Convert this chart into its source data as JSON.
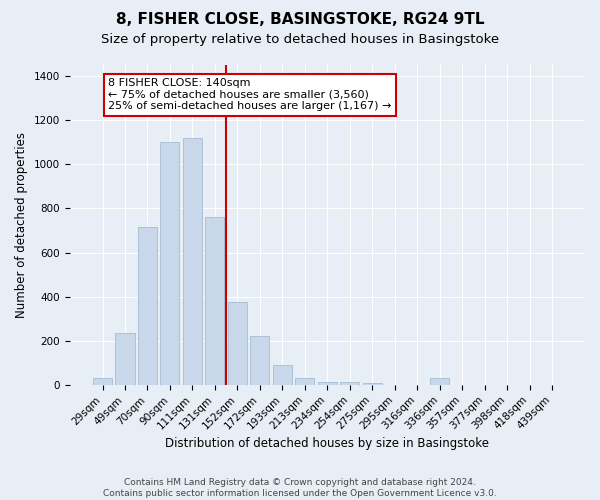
{
  "title_line1": "8, FISHER CLOSE, BASINGSTOKE, RG24 9TL",
  "title_line2": "Size of property relative to detached houses in Basingstoke",
  "xlabel": "Distribution of detached houses by size in Basingstoke",
  "ylabel": "Number of detached properties",
  "bar_labels": [
    "29sqm",
    "49sqm",
    "70sqm",
    "90sqm",
    "111sqm",
    "131sqm",
    "152sqm",
    "172sqm",
    "193sqm",
    "213sqm",
    "234sqm",
    "254sqm",
    "275sqm",
    "295sqm",
    "316sqm",
    "336sqm",
    "357sqm",
    "377sqm",
    "398sqm",
    "418sqm",
    "439sqm"
  ],
  "bar_heights": [
    29,
    236,
    716,
    1100,
    1120,
    760,
    375,
    220,
    90,
    30,
    15,
    14,
    10,
    0,
    0,
    30,
    0,
    0,
    0,
    0,
    0
  ],
  "bar_color": "#c8d8ea",
  "bar_edge_color": "#9ab5cc",
  "vline_x": 5.5,
  "vline_color": "#cc0000",
  "annotation_text": "8 FISHER CLOSE: 140sqm\n← 75% of detached houses are smaller (3,560)\n25% of semi-detached houses are larger (1,167) →",
  "annotation_box_facecolor": "#ffffff",
  "annotation_box_edgecolor": "#cc0000",
  "ylim": [
    0,
    1450
  ],
  "yticks": [
    0,
    200,
    400,
    600,
    800,
    1000,
    1200,
    1400
  ],
  "bg_color": "#e8eef5",
  "grid_color": "#ffffff",
  "footer_line1": "Contains HM Land Registry data © Crown copyright and database right 2024.",
  "footer_line2": "Contains public sector information licensed under the Open Government Licence v3.0.",
  "title1_fontsize": 11,
  "title2_fontsize": 9.5,
  "tick_fontsize": 7.5,
  "ylabel_fontsize": 8.5,
  "xlabel_fontsize": 8.5,
  "footer_fontsize": 6.5,
  "annot_fontsize": 8
}
